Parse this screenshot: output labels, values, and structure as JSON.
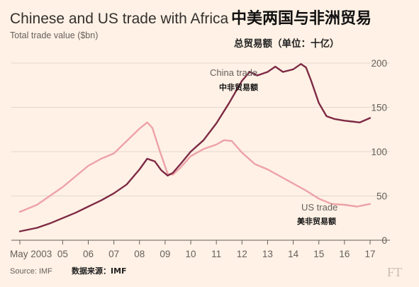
{
  "title": "Chinese and US trade with Africa",
  "title_zh": "中美两国与非洲贸易",
  "subtitle": "Total trade value ($bn)",
  "subtitle_zh": "总贸易额（单位：十亿）",
  "source": "Source: IMF",
  "source_zh": "数据来源：IMF",
  "logo": "FT",
  "colors": {
    "background": "#fff1e5",
    "china": "#7d2a45",
    "us": "#eda2a8",
    "grid": "#e3d6ca",
    "text": "#66605c"
  },
  "chart_data": {
    "type": "line",
    "title": "Chinese and US trade with Africa",
    "subtitle": "Total trade value ($bn)",
    "x_tick_labels": [
      "May 2003",
      "05",
      "06",
      "07",
      "08",
      "09",
      "10",
      "11",
      "12",
      "13",
      "14",
      "15",
      "16",
      "17"
    ],
    "x_tick_values": [
      2003.33,
      2005,
      2006,
      2007,
      2008,
      2009,
      2010,
      2011,
      2012,
      2013,
      2014,
      2015,
      2016,
      2017
    ],
    "xlim": [
      2003.33,
      2017.0
    ],
    "y_ticks": [
      0,
      50,
      100,
      150,
      200
    ],
    "ylim": [
      0,
      200
    ],
    "y_axis_position": "right",
    "grid": true,
    "series": [
      {
        "name": "China trade",
        "name_zh": "中非贸易额",
        "x": [
          2003.33,
          2004.0,
          2004.5,
          2005.0,
          2005.5,
          2006.0,
          2006.5,
          2007.0,
          2007.5,
          2008.0,
          2008.3,
          2008.6,
          2008.85,
          2009.1,
          2009.3,
          2009.6,
          2010.0,
          2010.5,
          2011.0,
          2011.5,
          2012.0,
          2012.3,
          2012.6,
          2013.0,
          2013.3,
          2013.6,
          2014.0,
          2014.3,
          2014.5,
          2014.7,
          2015.0,
          2015.3,
          2015.6,
          2016.0,
          2016.3,
          2016.6,
          2017.0
        ],
        "y": [
          10,
          14,
          19,
          25,
          31,
          38,
          45,
          53,
          63,
          80,
          92,
          89,
          79,
          73,
          76,
          86,
          100,
          113,
          132,
          155,
          180,
          190,
          186,
          190,
          196,
          190,
          193,
          199,
          195,
          180,
          155,
          140,
          137,
          135,
          134,
          133,
          138
        ]
      },
      {
        "name": "US trade",
        "name_zh": "美非贸易额",
        "x": [
          2003.33,
          2004.0,
          2004.5,
          2005.0,
          2005.5,
          2006.0,
          2006.5,
          2007.0,
          2007.5,
          2008.0,
          2008.3,
          2008.5,
          2008.8,
          2009.1,
          2009.3,
          2009.6,
          2010.0,
          2010.5,
          2011.0,
          2011.3,
          2011.6,
          2012.0,
          2012.5,
          2013.0,
          2013.5,
          2014.0,
          2014.5,
          2015.0,
          2015.5,
          2016.0,
          2016.5,
          2017.0
        ],
        "y": [
          32,
          40,
          50,
          60,
          72,
          84,
          92,
          98,
          112,
          126,
          133,
          127,
          100,
          75,
          74,
          82,
          95,
          103,
          108,
          113,
          112,
          99,
          86,
          80,
          72,
          64,
          56,
          47,
          41,
          40,
          38,
          41
        ]
      }
    ],
    "annotations": [
      {
        "series": "China trade",
        "text": "China trade",
        "text_zh": "中非贸易额"
      },
      {
        "series": "US trade",
        "text": "US trade",
        "text_zh": "美非贸易额"
      }
    ]
  }
}
